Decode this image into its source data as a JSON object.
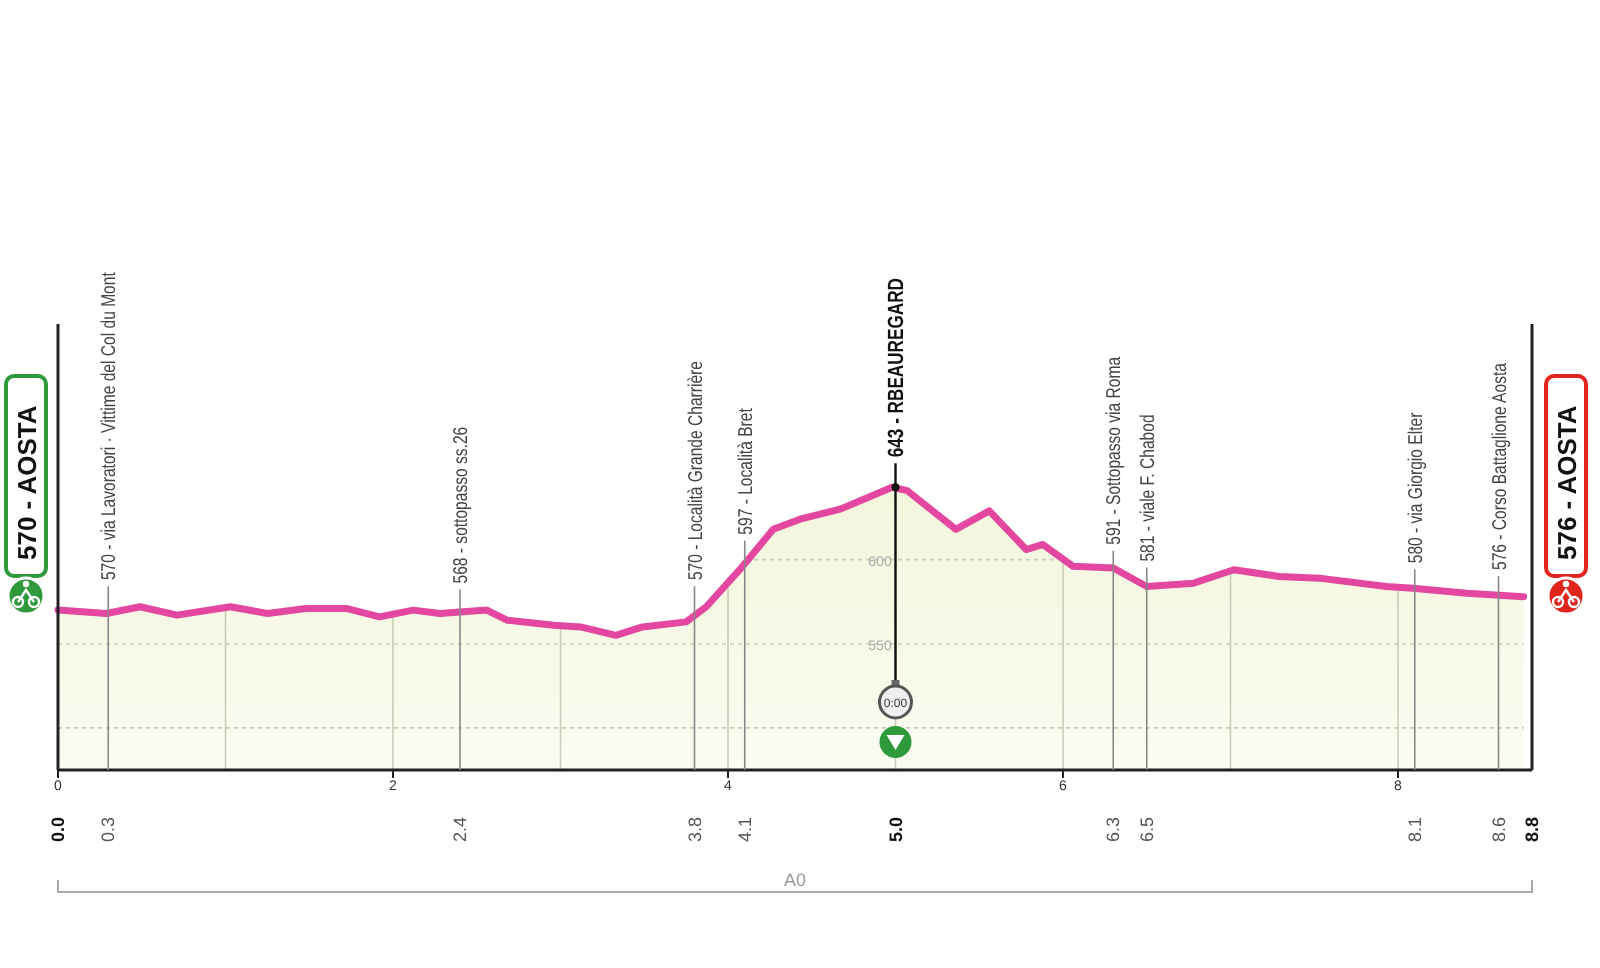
{
  "chart_data": {
    "type": "area",
    "x": [
      0,
      0.29,
      0.49,
      0.71,
      1.03,
      1.25,
      1.48,
      1.72,
      1.92,
      2.12,
      2.28,
      2.56,
      2.68,
      2.96,
      3.12,
      3.33,
      3.49,
      3.75,
      3.87,
      4.07,
      4.27,
      4.43,
      4.67,
      4.98,
      5.07,
      5.36,
      5.56,
      5.78,
      5.88,
      6.06,
      6.3,
      6.5,
      6.78,
      7.02,
      7.29,
      7.53,
      7.93,
      8.09,
      8.41,
      8.75
    ],
    "series": [
      {
        "color": "#e4479f",
        "values": [
          570,
          568,
          572,
          567,
          572,
          568,
          571,
          571,
          566,
          570,
          568,
          570,
          564,
          561,
          560,
          555,
          560,
          563,
          572,
          594,
          618,
          624,
          630,
          643,
          641,
          618,
          629,
          606,
          609,
          596,
          595,
          584,
          586,
          594,
          590,
          589,
          584,
          583,
          580,
          578
        ]
      }
    ],
    "xlim": [
      0,
      8.8
    ],
    "xticks": [
      0,
      {
        "value": 1,
        "label": null
      },
      2,
      {
        "value": 3,
        "label": null
      },
      4,
      {
        "value": 5,
        "label": null
      },
      6,
      {
        "value": 7,
        "label": null
      },
      8
    ],
    "x2lim": [
      0,
      8.8
    ],
    "x2ticks": [
      {
        "value": 0,
        "label": "0.0"
      },
      0.3,
      2.4,
      3.8,
      4.1,
      {
        "value": 5,
        "label": "5.0"
      },
      6.3,
      6.5,
      8.1,
      8.6,
      8.8
    ],
    "ylim": [
      475,
      740
    ],
    "yticks": [
      {
        "value": 500,
        "label": null
      },
      550,
      600
    ],
    "grid": true,
    "annotations": [
      {
        "text": "570 - AOSTA",
        "x": 0,
        "y": 570
      },
      {
        "text": "570 - via Lavoratori · Vittime del Col du Mont",
        "x": 0.3,
        "y": 570
      },
      {
        "text": "568 - sottopasso ss.26",
        "x": 2.4,
        "y": 568
      },
      {
        "text": "570 - Località  Grande Charrière",
        "x": 3.8,
        "y": 570
      },
      {
        "text": "597 - Località Bret",
        "x": 4.1,
        "y": 597
      },
      {
        "text": "643 - RBEAUREGARD",
        "x": 5,
        "y": 643
      },
      {
        "text": "591 - Sottopasso via Roma",
        "x": 6.3,
        "y": 591
      },
      {
        "text": "581 - viale F. Chabod",
        "x": 6.5,
        "y": 581
      },
      {
        "text": "580 - via Giorgio Elter",
        "x": 8.1,
        "y": 580
      },
      {
        "text": "576 - Corso Battaglione Aosta",
        "x": 8.6,
        "y": 576
      },
      {
        "text": "576 - AOSTA",
        "x": 8.8,
        "y": 576
      },
      "A0",
      "0:00"
    ]
  }
}
